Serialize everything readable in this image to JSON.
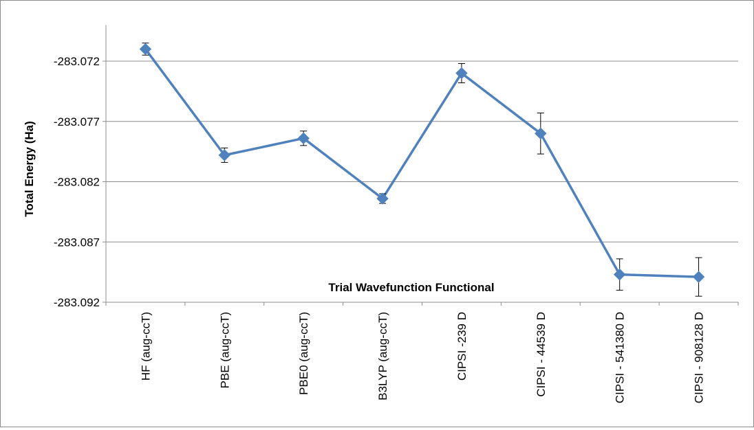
{
  "chart_data": {
    "type": "line",
    "title": "",
    "xlabel": "Trial Wavefunction Functional",
    "ylabel": "Total Energy (Ha)",
    "categories": [
      "HF (aug-ccT)",
      "PBE (aug-ccT)",
      "PBE0 (aug-ccT)",
      "B3LYP (aug-ccT)",
      "CIPSI -239 D",
      "CIPSI - 44539 D",
      "CIPSI - 541380 D",
      "CIPSI - 908128 D"
    ],
    "series": [
      {
        "values": [
          -283.071,
          -283.0798,
          -283.0784,
          -283.0834,
          -283.073,
          -283.078,
          -283.0897,
          -283.0899
        ],
        "errors": [
          0.0005,
          0.0006,
          0.0006,
          0.0004,
          0.0008,
          0.0017,
          0.0013,
          0.0016
        ]
      }
    ],
    "ylim": [
      -283.092,
      -283.069
    ],
    "yticks": [
      "-283.072",
      "-283.077",
      "-283.082",
      "-283.087",
      "-283.092"
    ],
    "grid": true,
    "legend": "none",
    "line_color": "#4f81bd"
  }
}
